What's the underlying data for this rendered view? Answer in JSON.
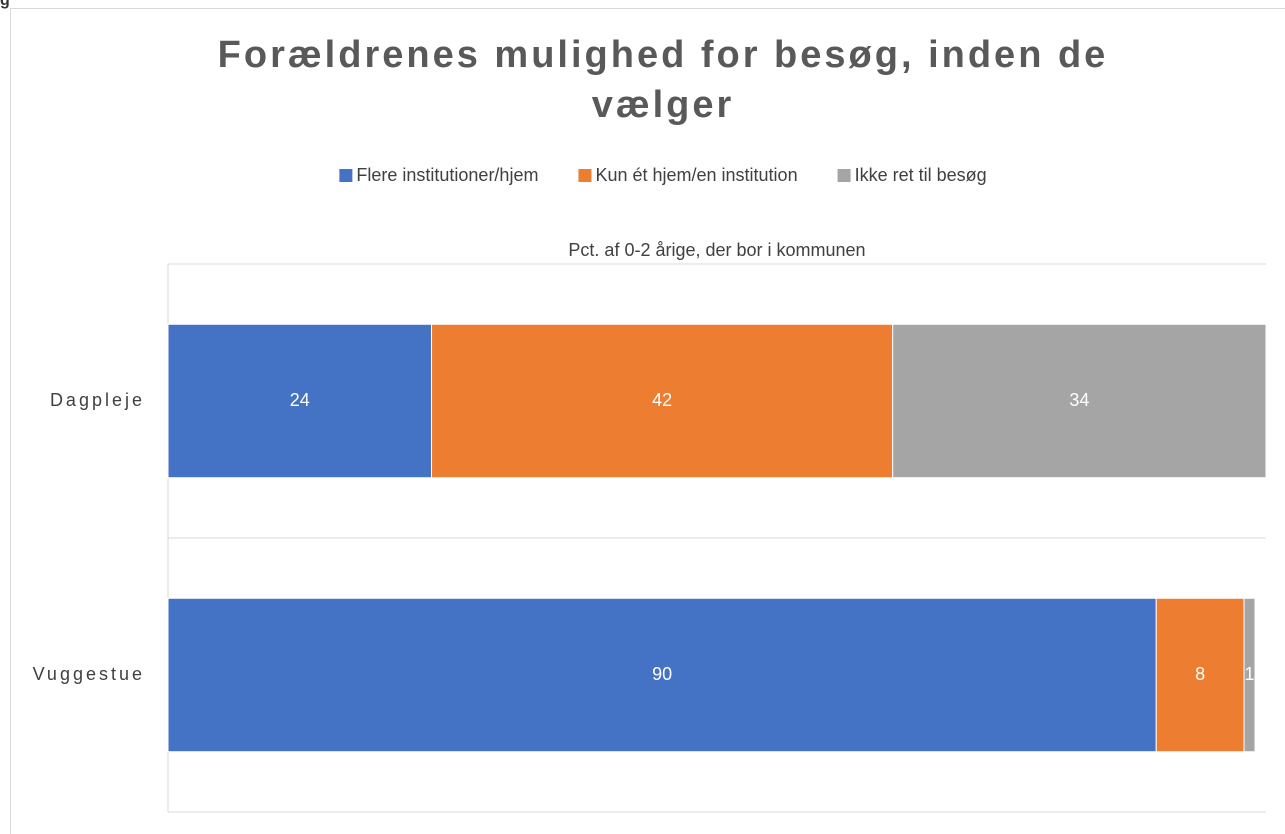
{
  "page_fragment": "g",
  "chart_data": {
    "type": "stacked_barh",
    "title": "Forældrenes mulighed for besøg, inden de vælger",
    "subtitle": "Pct. af 0-2 årige, der bor i kommunen",
    "categories": [
      "Dagpleje",
      "Vuggestue"
    ],
    "series": [
      {
        "name": "Flere institutioner/hjem",
        "color": "#4472c4",
        "values": [
          24,
          90
        ]
      },
      {
        "name": "Kun ét hjem/en institution",
        "color": "#ed7d31",
        "values": [
          42,
          8
        ]
      },
      {
        "name": "Ikke ret til besøg",
        "color": "#a5a5a5",
        "values": [
          34,
          1
        ]
      }
    ],
    "xlim": [
      0,
      100
    ],
    "legend": "top"
  }
}
